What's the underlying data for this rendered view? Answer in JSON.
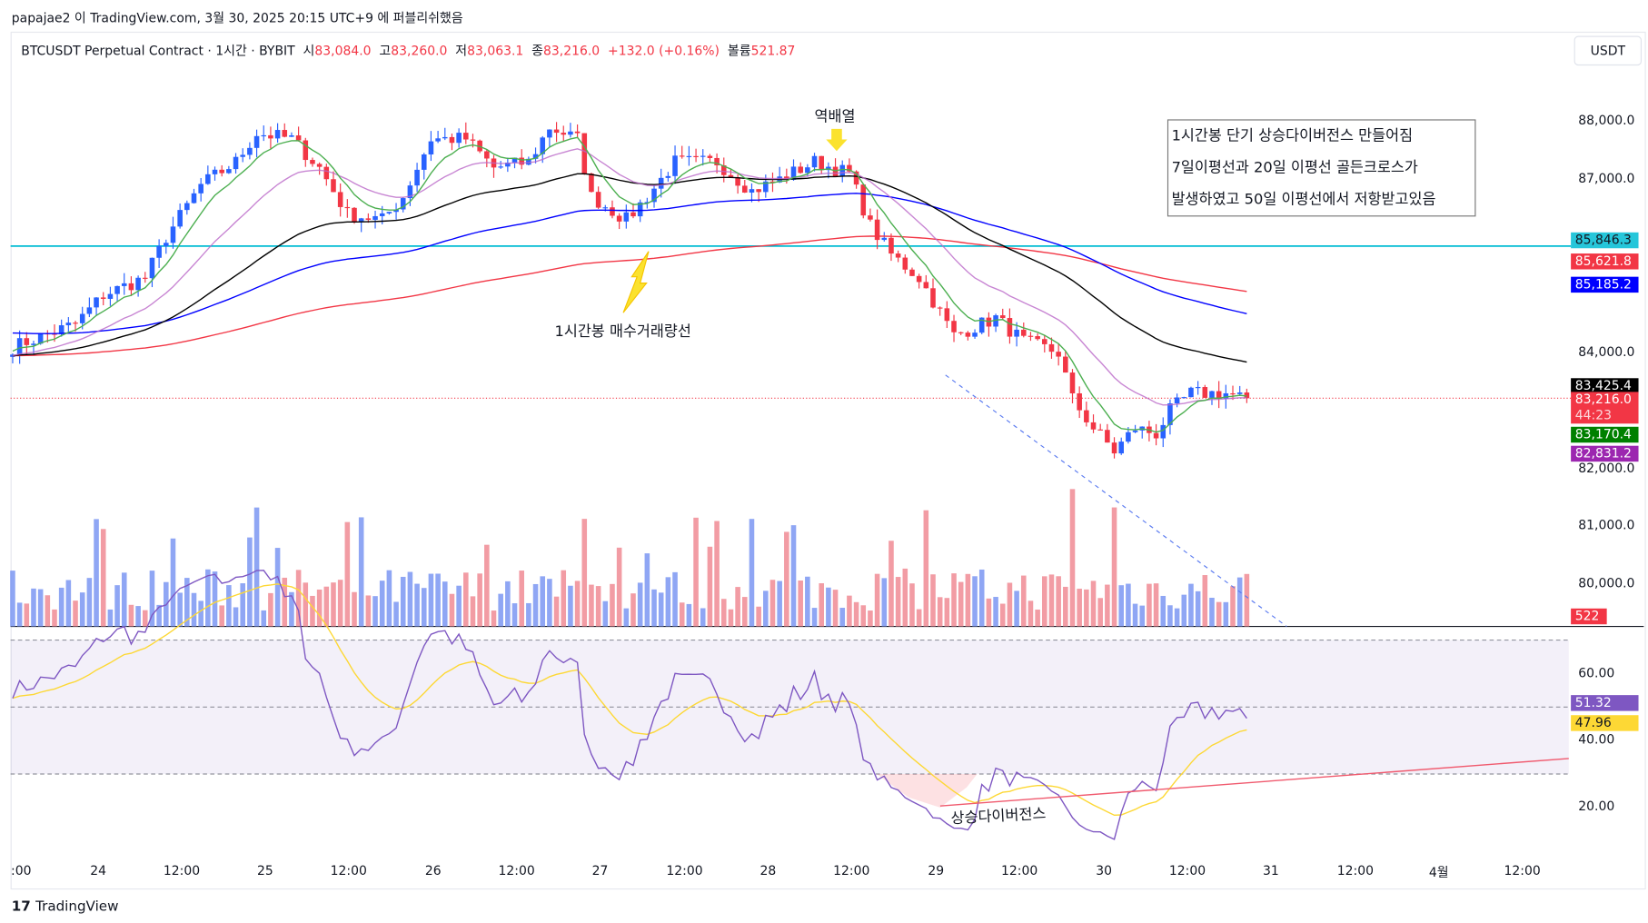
{
  "header": {
    "published": "papajae2 이 TradingView.com, 3월 30, 2025 20:15 UTC+9 에 퍼블리쉬했음"
  },
  "legend": {
    "symbol": "BTCUSDT Perpetual Contract · 1시간 · BYBIT",
    "o_label": "시",
    "o": "83,084.0",
    "h_label": "고",
    "h": "83,260.0",
    "l_label": "저",
    "l": "83,063.1",
    "c_label": "종",
    "c": "83,216.0",
    "change": "+132.0 (+0.16%)",
    "vol_label": "볼륨",
    "vol": "521.87"
  },
  "currency": "USDT",
  "price_axis": [
    "88,000.0",
    "87,000.0",
    "84,000.0",
    "82,000.0",
    "81,000.0",
    "80,000.0"
  ],
  "price_axis_values": [
    88000,
    87000,
    84000,
    82000,
    81000,
    80000
  ],
  "price_labels": [
    {
      "text": "85,846.3",
      "value": 85846.3,
      "bg": "#26c6da",
      "fg": "#131722"
    },
    {
      "text": "85,621.8",
      "value": 85621.8,
      "bg": "#f23645",
      "fg": "#ffffff"
    },
    {
      "text": "85,185.2",
      "value": 85185.2,
      "bg": "#0000ff",
      "fg": "#ffffff"
    },
    {
      "text": "83,425.4",
      "value": 83425.4,
      "bg": "#000000",
      "fg": "#ffffff"
    },
    {
      "text": "83,216.0",
      "value": 83216.0,
      "bg": "#f23645",
      "fg": "#ffffff"
    },
    {
      "text": "83,170.4",
      "value": 83170.4,
      "bg": "#008000",
      "fg": "#ffffff"
    },
    {
      "text": "82,831.2",
      "value": 82831.2,
      "bg": "#9c27b0",
      "fg": "#ffffff"
    }
  ],
  "countdown": "44:23",
  "volume_label": "522",
  "rsi_axis": [
    "60.00",
    "40.00",
    "20.00"
  ],
  "rsi_axis_values": [
    60,
    40,
    20
  ],
  "rsi_labels": [
    {
      "text": "51.32",
      "value": 51.32,
      "bg": "#7e57c2",
      "fg": "#ffffff"
    },
    {
      "text": "47.96",
      "value": 47.96,
      "bg": "#fdd835",
      "fg": "#131722"
    }
  ],
  "time_axis": [
    ":00",
    "24",
    "12:00",
    "25",
    "12:00",
    "26",
    "12:00",
    "27",
    "12:00",
    "28",
    "12:00",
    "29",
    "12:00",
    "30",
    "12:00",
    "31",
    "12:00",
    "4월",
    "12:00"
  ],
  "note": {
    "line1": "1시간봉 단기 상승다이버전스 만들어짐",
    "line2": "7일이평선과 20일 이평선 골든크로스가",
    "line3": "발생하였고 50일 이평선에서 저항받고있음"
  },
  "annotations": {
    "top": "역배열",
    "volume": "1시간봉 매수거래량선",
    "divergence": "상승다이버전스"
  },
  "brand": {
    "logo": "17",
    "name": "TradingView"
  },
  "colors": {
    "up": "#089981",
    "upCandle": "#2962ff",
    "down": "#f23645",
    "ma7": "#4caf50",
    "ma20": "#ba68c8",
    "ma50": "#000000",
    "ma100": "#0000ff",
    "ma200": "#f23645",
    "rsi": "#7e57c2",
    "rsiMa": "#fdd835",
    "hline": "#00bcd4"
  },
  "chart_data": {
    "type": "candlestick",
    "timeframe": "1h",
    "start": "2025-03-23 12:00",
    "hline": 85846.3,
    "last_price": 83216.0,
    "close_keypoints": [
      [
        0,
        84100
      ],
      [
        9,
        84500
      ],
      [
        13,
        85000
      ],
      [
        19,
        85300
      ],
      [
        22,
        86000
      ],
      [
        27,
        86900
      ],
      [
        32,
        87300
      ],
      [
        35,
        87800
      ],
      [
        40,
        87700
      ],
      [
        44,
        87200
      ],
      [
        48,
        86400
      ],
      [
        53,
        86300
      ],
      [
        56,
        86700
      ],
      [
        60,
        87700
      ],
      [
        65,
        87700
      ],
      [
        69,
        87200
      ],
      [
        74,
        87300
      ],
      [
        77,
        87900
      ],
      [
        81,
        87700
      ],
      [
        83,
        86700
      ],
      [
        88,
        86300
      ],
      [
        91,
        86700
      ],
      [
        95,
        87300
      ],
      [
        101,
        87300
      ],
      [
        106,
        86800
      ],
      [
        110,
        87000
      ],
      [
        115,
        87300
      ],
      [
        120,
        87100
      ],
      [
        123,
        86200
      ],
      [
        126,
        85700
      ],
      [
        130,
        85300
      ],
      [
        135,
        84300
      ],
      [
        139,
        84500
      ],
      [
        141,
        84600
      ],
      [
        145,
        84200
      ],
      [
        150,
        84000
      ],
      [
        152,
        83200
      ],
      [
        155,
        82700
      ],
      [
        158,
        82300
      ],
      [
        161,
        82700
      ],
      [
        164,
        82600
      ],
      [
        166,
        83000
      ],
      [
        169,
        83300
      ],
      [
        174,
        83300
      ],
      [
        177,
        83216
      ]
    ],
    "ma_seeds": {
      "ma7": 84050,
      "ma20": 83950,
      "ma50": 83950,
      "ma100": 84350,
      "ma200": 83950
    },
    "ma_periods": {
      "ma7": 7,
      "ma20": 20,
      "ma50": 50,
      "ma100": 100,
      "ma200": 200
    },
    "price_range": [
      79500,
      88900
    ],
    "rsi_range": [
      10,
      80
    ],
    "rsi_bands": [
      30,
      50,
      70
    ]
  }
}
